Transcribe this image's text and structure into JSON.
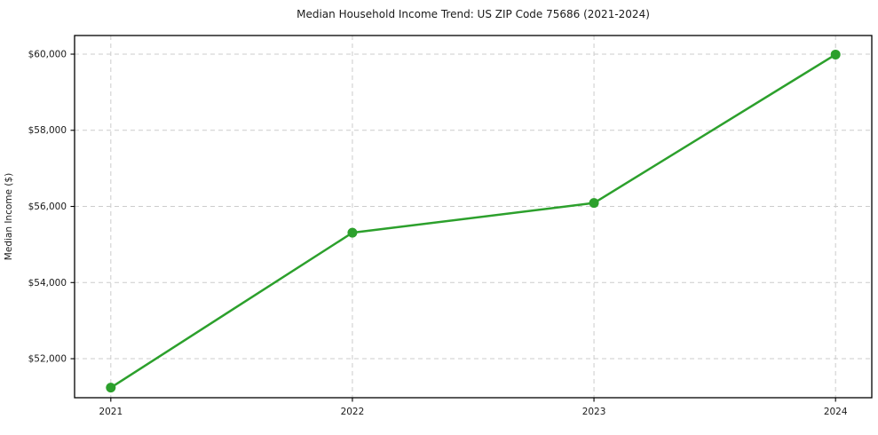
{
  "chart_data": {
    "type": "line",
    "title": "Median Household Income Trend: US ZIP Code 75686 (2021-2024)",
    "xlabel": "",
    "ylabel": "Median Income ($)",
    "x": [
      2021,
      2022,
      2023,
      2024
    ],
    "values": [
      51240,
      55310,
      56090,
      59990
    ],
    "x_ticks": [
      {
        "value": 2021,
        "label": "2021"
      },
      {
        "value": 2022,
        "label": "2022"
      },
      {
        "value": 2023,
        "label": "2023"
      },
      {
        "value": 2024,
        "label": "2024"
      }
    ],
    "y_ticks": [
      {
        "value": 52000,
        "label": "$52,000"
      },
      {
        "value": 54000,
        "label": "$54,000"
      },
      {
        "value": 56000,
        "label": "$56,000"
      },
      {
        "value": 58000,
        "label": "$58,000"
      },
      {
        "value": 60000,
        "label": "$60,000"
      }
    ],
    "xlim": [
      2020.85,
      2024.15
    ],
    "ylim": [
      50975,
      60490
    ],
    "grid": true,
    "legend": "none",
    "colors": {
      "line": "#2ca02c",
      "marker": "#2ca02c",
      "grid": "#cccccc",
      "axis": "#000000",
      "background": "#ffffff",
      "text": "#1a1a1a"
    }
  }
}
